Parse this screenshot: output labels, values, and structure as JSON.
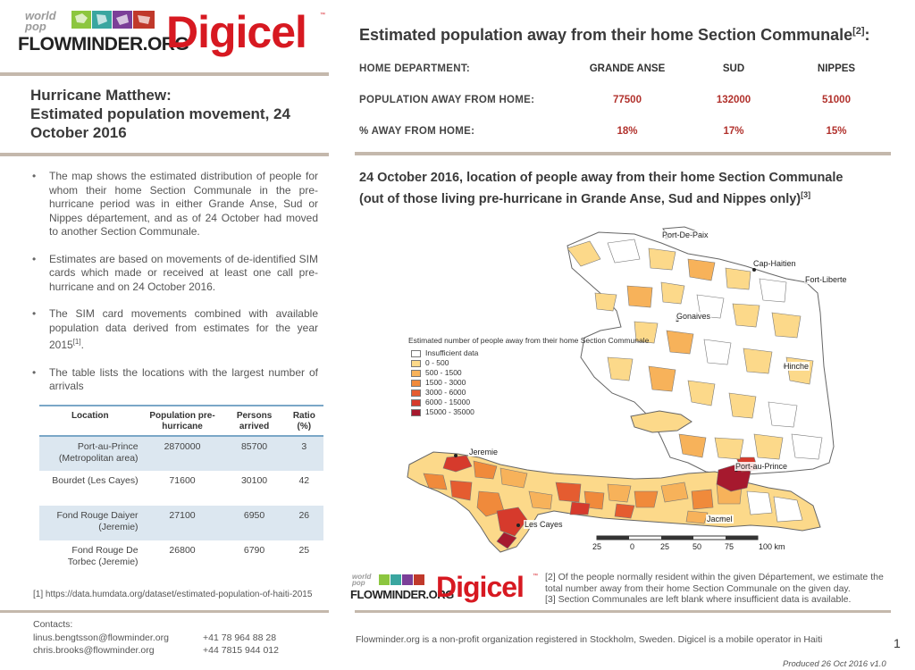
{
  "logos": {
    "worldpop": "world pop",
    "flowminder": "FLOWMINDER.ORG",
    "digicel": "Digicel",
    "tm": "™"
  },
  "title": {
    "line1": "Hurricane Matthew:",
    "line2": "Estimated population movement, 24",
    "line3": "October 2016"
  },
  "bullets": [
    "The map shows the estimated distribution of people for whom their home Section Communale in the pre-hurricane period was in either Grande Anse, Sud or Nippes département, and as of 24 October had moved to another Section Communale.",
    "Estimates are based on movements of de-identified SIM cards which made or received at least one call pre-hurricane and on 24 October 2016.",
    "The SIM card movements combined with available population data derived from estimates for the year 2015",
    "The table lists the locations with the largest number of arrivals"
  ],
  "bullet3_sup": "[1]",
  "bullet3_end": ".",
  "location_table": {
    "headers": {
      "location": "Location",
      "population": "Population pre-hurricane",
      "persons": "Persons arrived",
      "ratio": "Ratio (%)"
    },
    "rows": [
      {
        "location": "Port-au-Prince (Metropolitan area)",
        "population": "2870000",
        "persons": "85700",
        "ratio": "3"
      },
      {
        "location": "Bourdet (Les Cayes)",
        "population": "71600",
        "persons": "30100",
        "ratio": "42"
      },
      {
        "location": "Fond Rouge Daiyer (Jeremie)",
        "population": "27100",
        "persons": "6950",
        "ratio": "26"
      },
      {
        "location": "Fond Rouge De Torbec (Jeremie)",
        "population": "26800",
        "persons": "6790",
        "ratio": "25"
      }
    ]
  },
  "footnote1": "[1] https://data.humdata.org/dataset/estimated-population-of-haiti-2015",
  "contacts": {
    "label": "Contacts:",
    "people": [
      {
        "email": "linus.bengtsson@flowminder.org",
        "phone": "+41 78 964 88 28"
      },
      {
        "email": "chris.brooks@flowminder.org",
        "phone": "+44 7815 944 012"
      }
    ]
  },
  "summary": {
    "title": "Estimated population away from their home Section Communale",
    "title_sup": "[2]",
    "title_end": ":",
    "rows": [
      {
        "label": "HOME DEPARTMENT:",
        "values": [
          "GRANDE ANSE",
          "SUD",
          "NIPPES"
        ]
      },
      {
        "label": "POPULATION AWAY FROM HOME:",
        "values": [
          "77500",
          "132000",
          "51000"
        ]
      },
      {
        "label": "% AWAY FROM HOME:",
        "values": [
          "18%",
          "17%",
          "15%"
        ]
      }
    ]
  },
  "map": {
    "title_line1": "24 October 2016, location of people away from their home Section Communale",
    "title_line2": "(out of those living pre-hurricane in Grande Anse, Sud and Nippes only)",
    "title_sup": "[3]",
    "legend": {
      "title": "Estimated number of people away from their home Section Communale",
      "items": [
        {
          "label": "Insufficient data",
          "color": "#ffffff"
        },
        {
          "label": "0 - 500",
          "color": "#fcd98a"
        },
        {
          "label": "500 - 1500",
          "color": "#f7b25a"
        },
        {
          "label": "1500 - 3000",
          "color": "#f08a3b"
        },
        {
          "label": "3000 - 6000",
          "color": "#e55c30"
        },
        {
          "label": "6000 - 15000",
          "color": "#d63a2c"
        },
        {
          "label": "15000 - 35000",
          "color": "#a6192e"
        }
      ]
    },
    "cities": {
      "port_de_paix": "Port-De-Paix",
      "cap_haitien": "Cap-Haitien",
      "fort_liberte": "Fort-Liberte",
      "gonaives": "Gonaives",
      "hinche": "Hinche",
      "jeremie": "Jeremie",
      "port_au_prince": "Port-au-Prince",
      "les_cayes": "Les Cayes",
      "jacmel": "Jacmel"
    },
    "scale": {
      "ticks": [
        "25",
        "0",
        "25",
        "50",
        "75",
        "100 km"
      ]
    }
  },
  "notes": {
    "n2": "[2] Of the people normally resident within the given Département, we estimate the total number away from their home Section Communale on the given day.",
    "n3": "[3] Section Communales are left blank where insufficient data is available."
  },
  "disclaimer": "Flowminder.org is a non-profit organization registered in Stockholm, Sweden. Digicel is a mobile operator in Haiti",
  "page_number": "1",
  "produced": "Produced 26 Oct 2016 v1.0"
}
